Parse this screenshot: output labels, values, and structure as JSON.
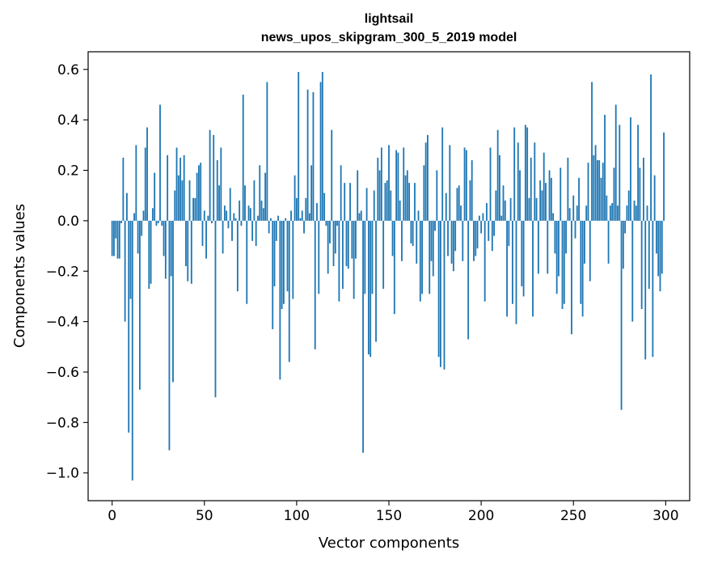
{
  "chart_data": {
    "type": "bar",
    "title": "lightsail",
    "subtitle": "news_upos_skipgram_300_5_2019 model",
    "xlabel": "Vector components",
    "ylabel": "Components values",
    "xlim": [
      -13,
      313
    ],
    "ylim": [
      -1.11,
      0.67
    ],
    "x_ticks": [
      0,
      50,
      100,
      150,
      200,
      250,
      300
    ],
    "x_tick_labels": [
      "0",
      "50",
      "100",
      "150",
      "200",
      "250",
      "300"
    ],
    "y_ticks": [
      -1.0,
      -0.8,
      -0.6,
      -0.4,
      -0.2,
      0.0,
      0.2,
      0.4,
      0.6
    ],
    "y_tick_labels": [
      "−1.0",
      "−0.8",
      "−0.6",
      "−0.4",
      "−0.2",
      "0.0",
      "0.2",
      "0.4",
      "0.6"
    ],
    "grid": false,
    "bar_color": "#1f77b4",
    "values": [
      -0.14,
      -0.14,
      -0.07,
      -0.15,
      -0.15,
      -0.01,
      0.25,
      -0.4,
      0.11,
      -0.84,
      -0.31,
      -1.03,
      0.03,
      0.3,
      -0.13,
      -0.67,
      -0.06,
      0.04,
      0.29,
      0.37,
      -0.27,
      -0.25,
      0.05,
      0.19,
      -0.02,
      -0.01,
      0.46,
      -0.02,
      -0.14,
      -0.23,
      0.26,
      -0.91,
      -0.22,
      -0.64,
      0.12,
      0.29,
      0.18,
      0.25,
      0.16,
      0.26,
      -0.18,
      -0.24,
      0.16,
      -0.25,
      0.09,
      0.09,
      0.19,
      0.22,
      0.23,
      -0.1,
      0.04,
      -0.15,
      0.02,
      0.36,
      -0.01,
      0.34,
      -0.7,
      0.24,
      0.14,
      0.29,
      -0.13,
      0.06,
      0.04,
      -0.03,
      0.13,
      -0.08,
      0.03,
      0.01,
      -0.28,
      0.08,
      -0.02,
      0.5,
      0.14,
      -0.33,
      0.06,
      0.05,
      -0.08,
      0.16,
      -0.1,
      0.02,
      0.22,
      0.08,
      0.05,
      0.19,
      0.55,
      -0.05,
      0.01,
      -0.43,
      -0.26,
      -0.08,
      0.02,
      -0.63,
      -0.35,
      -0.33,
      0.01,
      -0.28,
      -0.56,
      0.04,
      -0.31,
      0.18,
      0.09,
      0.59,
      0.01,
      0.04,
      -0.05,
      0.09,
      0.52,
      0.03,
      0.22,
      0.51,
      -0.51,
      0.07,
      -0.29,
      0.55,
      0.59,
      0.11,
      -0.02,
      -0.21,
      -0.09,
      0.36,
      -0.18,
      -0.13,
      -0.02,
      -0.32,
      0.22,
      -0.27,
      0.15,
      -0.18,
      -0.19,
      0.15,
      -0.15,
      -0.31,
      -0.15,
      0.2,
      0.03,
      0.04,
      -0.92,
      -0.29,
      0.13,
      -0.53,
      -0.54,
      -0.29,
      0.12,
      -0.48,
      0.25,
      0.2,
      0.29,
      -0.27,
      0.15,
      0.16,
      0.3,
      0.12,
      -0.14,
      -0.37,
      0.28,
      0.27,
      0.08,
      -0.16,
      0.29,
      0.18,
      0.2,
      0.15,
      -0.09,
      -0.1,
      0.15,
      -0.17,
      0.04,
      -0.32,
      -0.29,
      0.22,
      0.31,
      0.34,
      -0.29,
      -0.16,
      -0.22,
      -0.04,
      0.2,
      -0.54,
      -0.58,
      0.37,
      -0.59,
      0.11,
      -0.14,
      0.3,
      -0.17,
      -0.2,
      -0.12,
      0.13,
      0.14,
      0.06,
      -0.16,
      0.29,
      0.28,
      -0.47,
      0.16,
      0.24,
      -0.16,
      -0.14,
      -0.11,
      0.02,
      -0.05,
      0.03,
      -0.32,
      0.07,
      -0.08,
      0.29,
      -0.12,
      -0.06,
      0.12,
      0.36,
      0.26,
      0.02,
      0.14,
      0.08,
      -0.38,
      -0.1,
      0.09,
      -0.33,
      0.37,
      -0.41,
      0.31,
      0.2,
      -0.26,
      -0.3,
      0.38,
      0.37,
      0.09,
      0.25,
      -0.38,
      0.31,
      0.09,
      -0.21,
      0.16,
      0.12,
      0.27,
      0.15,
      -0.21,
      0.2,
      0.17,
      0.03,
      -0.13,
      -0.29,
      -0.22,
      0.21,
      -0.35,
      -0.33,
      -0.13,
      0.25,
      0.05,
      -0.45,
      0.1,
      -0.07,
      0.06,
      0.17,
      -0.33,
      -0.38,
      -0.17,
      0.06,
      0.23,
      -0.24,
      0.55,
      0.26,
      0.3,
      0.24,
      0.24,
      0.17,
      0.23,
      0.42,
      0.1,
      -0.17,
      0.06,
      0.07,
      0.21,
      0.46,
      0.06,
      0.38,
      -0.75,
      -0.19,
      -0.05,
      0.06,
      0.12,
      0.41,
      -0.4,
      0.08,
      0.06,
      0.38,
      0.21,
      -0.35,
      0.25,
      -0.55,
      0.06,
      -0.27,
      0.58,
      -0.54,
      0.18,
      -0.13,
      -0.22,
      -0.28,
      -0.21,
      0.35
    ]
  }
}
